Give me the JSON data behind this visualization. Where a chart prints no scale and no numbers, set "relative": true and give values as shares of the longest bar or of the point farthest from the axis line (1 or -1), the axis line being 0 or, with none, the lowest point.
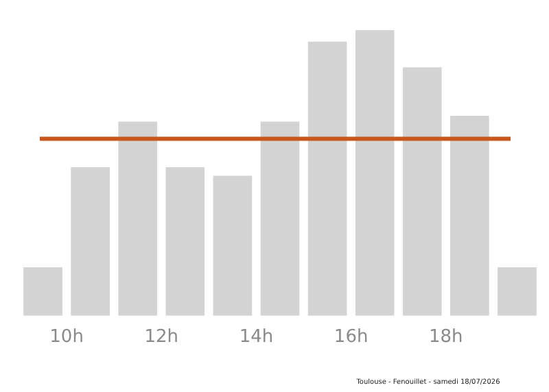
{
  "chart_data": {
    "type": "bar",
    "relative": true,
    "x": [
      9.5,
      10.5,
      11.5,
      12.5,
      13.5,
      14.5,
      15.5,
      16.5,
      17.5,
      18.5,
      19.5
    ],
    "values": [
      0.17,
      0.52,
      0.68,
      0.52,
      0.49,
      0.68,
      0.96,
      1,
      0.87,
      0.7,
      0.17
    ],
    "color": "#d3d3d3",
    "xlim": [
      9,
      20
    ],
    "xticks": [
      {
        "value": 10,
        "label": "10h"
      },
      {
        "value": 12,
        "label": "12h"
      },
      {
        "value": 14,
        "label": "14h"
      },
      {
        "value": 16,
        "label": "16h"
      },
      {
        "value": 18,
        "label": "18h"
      }
    ],
    "ref_lines": [
      {
        "axis": "y",
        "value": 0.62,
        "color": "#c8561e"
      }
    ],
    "grid": false,
    "legend": false,
    "annotations": [
      "Toulouse - Fenouillet - samedi 18/07/2026"
    ]
  }
}
